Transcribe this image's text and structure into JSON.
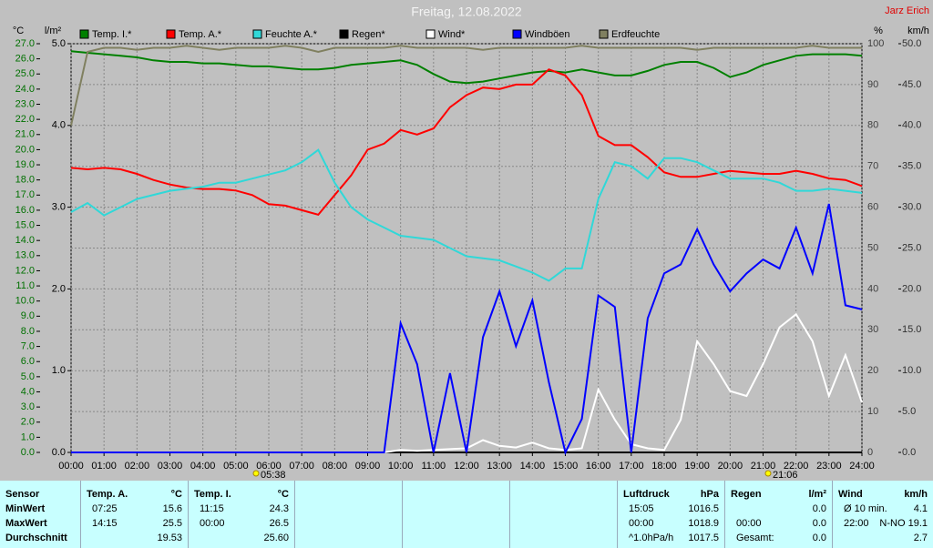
{
  "chart_data": {
    "type": "line",
    "title": "Freitag, 12.08.2022",
    "author": "Jarz Erich",
    "ylabel": "°C",
    "y4label": "l/m²",
    "y2label": "%",
    "y3label": "km/h",
    "sunrise": "05:38",
    "sunset": "21:06",
    "grid": true,
    "x": [
      0,
      0.5,
      1,
      1.5,
      2,
      2.5,
      3,
      3.5,
      4,
      4.5,
      5,
      5.5,
      6,
      6.5,
      7,
      7.5,
      8,
      8.5,
      9,
      9.5,
      10,
      10.5,
      11,
      11.5,
      12,
      12.5,
      13,
      13.5,
      14,
      14.5,
      15,
      15.5,
      16,
      16.5,
      17,
      17.5,
      18,
      18.5,
      19,
      19.5,
      20,
      20.5,
      21,
      21.5,
      22,
      22.5,
      23,
      23.5,
      24
    ],
    "xlim": [
      0,
      24
    ],
    "xticks": [
      {
        "value": 0,
        "label": "00:00"
      },
      {
        "value": 1,
        "label": "01:00"
      },
      {
        "value": 2,
        "label": "02:00"
      },
      {
        "value": 3,
        "label": "03:00"
      },
      {
        "value": 4,
        "label": "04:00"
      },
      {
        "value": 5,
        "label": "05:00"
      },
      {
        "value": 6,
        "label": "06:00"
      },
      {
        "value": 7,
        "label": "07:00"
      },
      {
        "value": 8,
        "label": "08:00"
      },
      {
        "value": 9,
        "label": "09:00"
      },
      {
        "value": 10,
        "label": "10:00"
      },
      {
        "value": 11,
        "label": "11:00"
      },
      {
        "value": 12,
        "label": "12:00"
      },
      {
        "value": 13,
        "label": "13:00"
      },
      {
        "value": 14,
        "label": "14:00"
      },
      {
        "value": 15,
        "label": "15:00"
      },
      {
        "value": 16,
        "label": "16:00"
      },
      {
        "value": 17,
        "label": "17:00"
      },
      {
        "value": 18,
        "label": "18:00"
      },
      {
        "value": 19,
        "label": "19:00"
      },
      {
        "value": 20,
        "label": "20:00"
      },
      {
        "value": 21,
        "label": "21:00"
      },
      {
        "value": 22,
        "label": "22:00"
      },
      {
        "value": 23,
        "label": "23:00"
      },
      {
        "value": 24,
        "label": "24:00"
      }
    ],
    "ylim": [
      0,
      27
    ],
    "yticks": [
      {
        "value": 0,
        "label": "0.0"
      },
      {
        "value": 1,
        "label": "1.0"
      },
      {
        "value": 2,
        "label": "2.0"
      },
      {
        "value": 3,
        "label": "3.0"
      },
      {
        "value": 4,
        "label": "4.0"
      },
      {
        "value": 5,
        "label": "5.0"
      },
      {
        "value": 6,
        "label": "6.0"
      },
      {
        "value": 7,
        "label": "7.0"
      },
      {
        "value": 8,
        "label": "8.0"
      },
      {
        "value": 9,
        "label": "9.0"
      },
      {
        "value": 10,
        "label": "10.0"
      },
      {
        "value": 11,
        "label": "11.0"
      },
      {
        "value": 12,
        "label": "12.0"
      },
      {
        "value": 13,
        "label": "13.0"
      },
      {
        "value": 14,
        "label": "14.0"
      },
      {
        "value": 15,
        "label": "15.0"
      },
      {
        "value": 16,
        "label": "16.0"
      },
      {
        "value": 17,
        "label": "17.0"
      },
      {
        "value": 18,
        "label": "18.0"
      },
      {
        "value": 19,
        "label": "19.0"
      },
      {
        "value": 20,
        "label": "20.0"
      },
      {
        "value": 21,
        "label": "21.0"
      },
      {
        "value": 22,
        "label": "22.0"
      },
      {
        "value": 23,
        "label": "23.0"
      },
      {
        "value": 24,
        "label": "24.0"
      },
      {
        "value": 25,
        "label": "25.0"
      },
      {
        "value": 26,
        "label": "26.0"
      },
      {
        "value": 27,
        "label": "27.0"
      }
    ],
    "y4lim": [
      0,
      5
    ],
    "y4ticks": [
      {
        "value": 0,
        "label": "0.0"
      },
      {
        "value": 1,
        "label": "1.0"
      },
      {
        "value": 2,
        "label": "2.0"
      },
      {
        "value": 3,
        "label": "3.0"
      },
      {
        "value": 4,
        "label": "4.0"
      },
      {
        "value": 5,
        "label": "5.0"
      }
    ],
    "y2lim": [
      0,
      100
    ],
    "y2ticks": [
      0,
      10,
      20,
      30,
      40,
      50,
      60,
      70,
      80,
      90,
      100
    ],
    "y3lim": [
      0,
      50
    ],
    "y3ticks": [
      {
        "value": 0,
        "label": "0.0"
      },
      {
        "value": 5,
        "label": "5.0"
      },
      {
        "value": 10,
        "label": "10.0"
      },
      {
        "value": 15,
        "label": "15.0"
      },
      {
        "value": 20,
        "label": "20.0"
      },
      {
        "value": 25,
        "label": "25.0"
      },
      {
        "value": 30,
        "label": "30.0"
      },
      {
        "value": 35,
        "label": "35.0"
      },
      {
        "value": 40,
        "label": "40.0"
      },
      {
        "value": 45,
        "label": "45.0"
      },
      {
        "value": 50,
        "label": "50.0"
      }
    ],
    "series": [
      {
        "name": "Temp. I.*",
        "color": "#008000",
        "axis": "y",
        "values": [
          26.5,
          26.4,
          26.3,
          26.2,
          26.1,
          25.9,
          25.8,
          25.8,
          25.7,
          25.7,
          25.6,
          25.5,
          25.5,
          25.4,
          25.3,
          25.3,
          25.4,
          25.6,
          25.7,
          25.8,
          25.9,
          25.6,
          25.0,
          24.5,
          24.4,
          24.5,
          24.7,
          24.9,
          25.1,
          25.2,
          25.1,
          25.3,
          25.1,
          24.9,
          24.9,
          25.2,
          25.6,
          25.8,
          25.8,
          25.4,
          24.8,
          25.1,
          25.6,
          25.9,
          26.2,
          26.3,
          26.3,
          26.3,
          26.2
        ]
      },
      {
        "name": "Temp. A.*",
        "color": "#ff0000",
        "axis": "y",
        "values": [
          18.8,
          18.7,
          18.8,
          18.7,
          18.4,
          18.0,
          17.7,
          17.5,
          17.4,
          17.4,
          17.3,
          17.0,
          16.4,
          16.3,
          16.0,
          15.7,
          17.0,
          18.3,
          20.0,
          20.4,
          21.3,
          21.0,
          21.4,
          22.8,
          23.6,
          24.1,
          24.0,
          24.3,
          24.3,
          25.3,
          24.9,
          23.6,
          20.9,
          20.3,
          20.3,
          19.5,
          18.5,
          18.2,
          18.2,
          18.4,
          18.6,
          18.5,
          18.4,
          18.4,
          18.6,
          18.4,
          18.1,
          18.0,
          17.6
        ]
      },
      {
        "name": "Feuchte A.*",
        "color": "#30d8d8",
        "axis": "y2",
        "values": [
          58.8,
          61,
          58,
          60,
          62,
          63,
          64,
          64.5,
          65,
          66,
          66,
          67,
          68,
          69,
          71,
          74,
          66,
          60,
          57,
          55,
          53,
          52.5,
          52,
          50,
          48,
          47.5,
          47,
          45.5,
          44,
          42,
          45,
          45,
          62,
          71,
          70,
          67,
          72,
          72,
          71,
          69,
          67,
          67,
          67,
          66,
          64,
          64,
          64.5,
          64,
          63.5
        ]
      },
      {
        "name": "Regen*",
        "color": "#000000",
        "axis": "y4",
        "values": [
          0,
          0,
          0,
          0,
          0,
          0,
          0,
          0,
          0,
          0,
          0,
          0,
          0,
          0,
          0,
          0,
          0,
          0,
          0,
          0,
          0,
          0,
          0,
          0,
          0,
          0,
          0,
          0,
          0,
          0,
          0,
          0,
          0,
          0,
          0,
          0,
          0,
          0,
          0,
          0,
          0,
          0,
          0,
          0,
          0,
          0,
          0,
          0,
          0
        ]
      },
      {
        "name": "Wind*",
        "color": "#ffffff",
        "axis": "y3",
        "values": [
          0,
          0,
          0,
          0,
          0,
          0,
          0,
          0,
          0,
          0,
          0,
          0,
          0,
          0,
          0,
          0,
          0,
          0,
          0,
          0,
          0.3,
          0.2,
          0.3,
          0.4,
          0.5,
          1.5,
          0.8,
          0.6,
          1.2,
          0.5,
          0.3,
          0.5,
          7.7,
          4.0,
          1.0,
          0.5,
          0.3,
          4.0,
          13.6,
          10.8,
          7.5,
          6.9,
          10.8,
          15.3,
          16.9,
          13.6,
          6.9,
          11.9,
          6.1
        ]
      },
      {
        "name": "Windböen",
        "color": "#0000ff",
        "axis": "y3",
        "values": [
          0,
          0,
          0,
          0,
          0,
          0,
          0,
          0,
          0,
          0,
          0,
          0,
          0,
          0,
          0,
          0,
          0,
          0,
          0,
          0,
          15.8,
          10.8,
          0,
          9.7,
          0,
          14.1,
          19.7,
          13,
          18.6,
          8.6,
          0,
          4.1,
          19.2,
          17.8,
          0,
          16.4,
          21.9,
          23,
          27.3,
          23,
          19.7,
          21.9,
          23.6,
          22.5,
          27.5,
          21.9,
          30.4,
          18,
          17.5
        ]
      },
      {
        "name": "Erdfeuchte",
        "color": "#808060",
        "axis": "y2",
        "values": [
          80,
          98,
          99,
          99,
          98.5,
          99,
          99,
          99.5,
          99,
          98.5,
          99,
          99,
          99,
          99.5,
          99,
          98,
          99,
          99,
          99,
          99,
          99.5,
          99,
          99,
          99,
          99,
          98.5,
          99,
          99,
          99,
          99,
          99,
          99.5,
          99,
          99,
          99,
          99,
          99,
          99,
          98.5,
          99,
          99,
          99,
          99,
          99,
          99,
          99.5,
          99,
          99,
          99
        ]
      }
    ]
  },
  "footer": {
    "sensor": {
      "header": "Sensor",
      "rows": [
        "MinWert",
        "MaxWert",
        "Durchschnitt"
      ]
    },
    "columns": [
      {
        "header": "Temp. A.",
        "unit": "°C",
        "rows": [
          {
            "label": "07:25",
            "value": "15.6"
          },
          {
            "label": "14:15",
            "value": "25.5"
          },
          {
            "value": "19.53"
          }
        ]
      },
      {
        "header": "Temp. I.",
        "unit": "°C",
        "rows": [
          {
            "label": "11:15",
            "value": "24.3"
          },
          {
            "label": "00:00",
            "value": "26.5"
          },
          {
            "value": "25.60"
          }
        ]
      },
      {
        "header": "Luftdruck",
        "unit": "hPa",
        "rows": [
          {
            "label": "15:05",
            "value": "1016.5"
          },
          {
            "label": "00:00",
            "value": "1018.9"
          },
          {
            "label": "^1.0hPa/h",
            "value": "1017.5"
          }
        ]
      },
      {
        "header": "Regen",
        "unit": "l/m²",
        "rows": [
          {
            "value": "0.0"
          },
          {
            "label": "00:00",
            "value": "0.0"
          },
          {
            "label": "Gesamt:",
            "value": "0.0"
          }
        ]
      },
      {
        "header": "Wind",
        "unit": "km/h",
        "rows": [
          {
            "label": "Ø 10 min.",
            "value": "4.1"
          },
          {
            "label": "22:00",
            "value": "N-NO 19.1"
          },
          {
            "value": "2.7"
          }
        ]
      }
    ]
  }
}
